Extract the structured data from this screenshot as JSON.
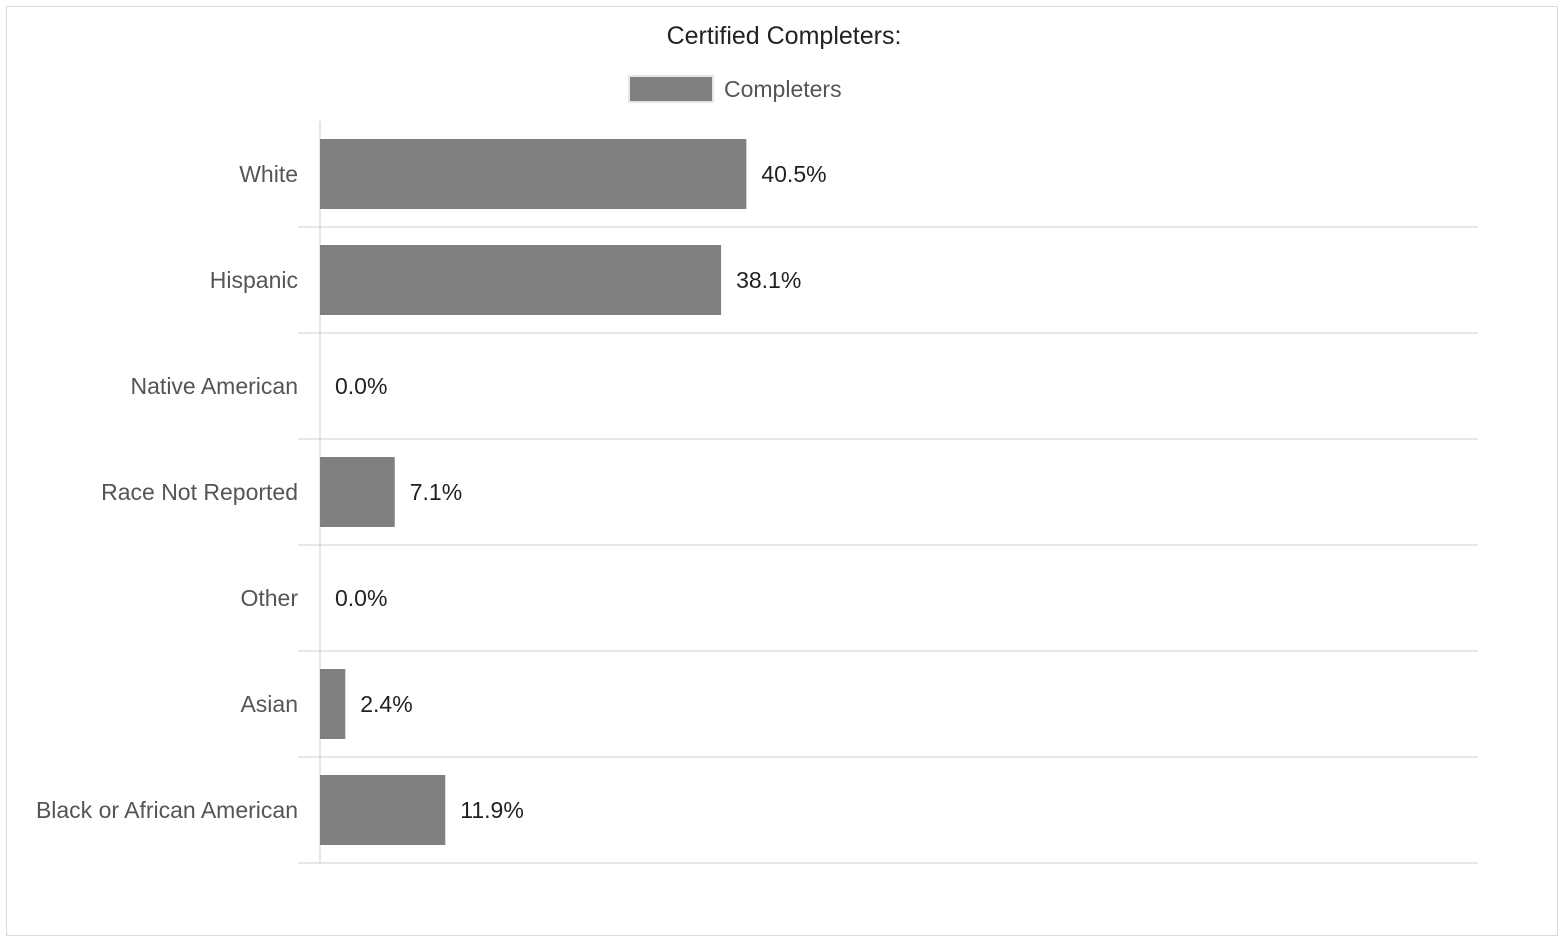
{
  "chart_data": {
    "type": "bar",
    "orientation": "horizontal",
    "title": "Certified Completers:",
    "legend": {
      "position": "top-center",
      "entries": [
        "Completers"
      ]
    },
    "categories": [
      "White",
      "Hispanic",
      "Native American",
      "Race Not Reported",
      "Other",
      "Asian",
      "Black or African American"
    ],
    "series": [
      {
        "name": "Completers",
        "values": [
          40.5,
          38.1,
          0.0,
          7.1,
          0.0,
          2.4,
          11.9
        ],
        "data_labels": [
          "40.5%",
          "38.1%",
          "0.0%",
          "7.1%",
          "0.0%",
          "2.4%",
          "11.9%"
        ]
      }
    ],
    "xlim": [
      0,
      110
    ],
    "grid": true,
    "colors": {
      "bar": "#808080",
      "gridline": "#e6e6e6",
      "axis": "#cccccc"
    }
  }
}
